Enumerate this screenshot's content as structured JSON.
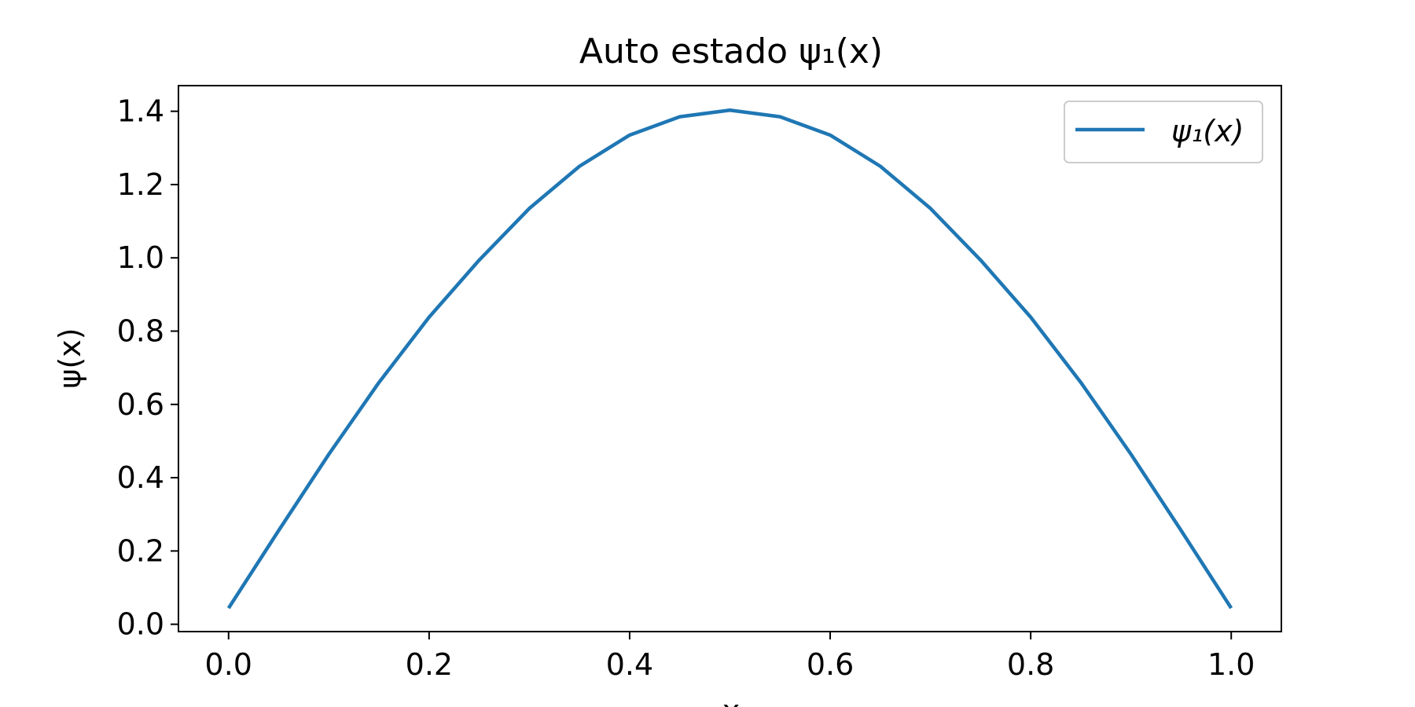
{
  "chart_data": {
    "type": "line",
    "title": "Auto estado ψ₁(x)",
    "xlabel": "x",
    "ylabel": "ψ(x)",
    "xlim": [
      -0.05,
      1.05
    ],
    "ylim": [
      -0.02,
      1.47
    ],
    "x_ticks": [
      "0.0",
      "0.2",
      "0.4",
      "0.6",
      "0.8",
      "1.0"
    ],
    "y_ticks": [
      "0.0",
      "0.2",
      "0.4",
      "0.6",
      "0.8",
      "1.0",
      "1.2",
      "1.4"
    ],
    "grid": false,
    "legend": {
      "position": "top-right",
      "entries": [
        "ψ₁(x)"
      ]
    },
    "series": [
      {
        "name": "ψ₁(x)",
        "color": "#1f77b4",
        "x": [
          0.0,
          0.05,
          0.1,
          0.15,
          0.2,
          0.25,
          0.3,
          0.35,
          0.4,
          0.45,
          0.5,
          0.55,
          0.6,
          0.65,
          0.7,
          0.75,
          0.8,
          0.85,
          0.9,
          0.95,
          1.0
        ],
        "y": [
          0.044,
          0.256,
          0.464,
          0.66,
          0.838,
          0.994,
          1.135,
          1.25,
          1.335,
          1.385,
          1.403,
          1.385,
          1.335,
          1.25,
          1.135,
          0.994,
          0.838,
          0.66,
          0.464,
          0.256,
          0.044
        ]
      }
    ]
  }
}
